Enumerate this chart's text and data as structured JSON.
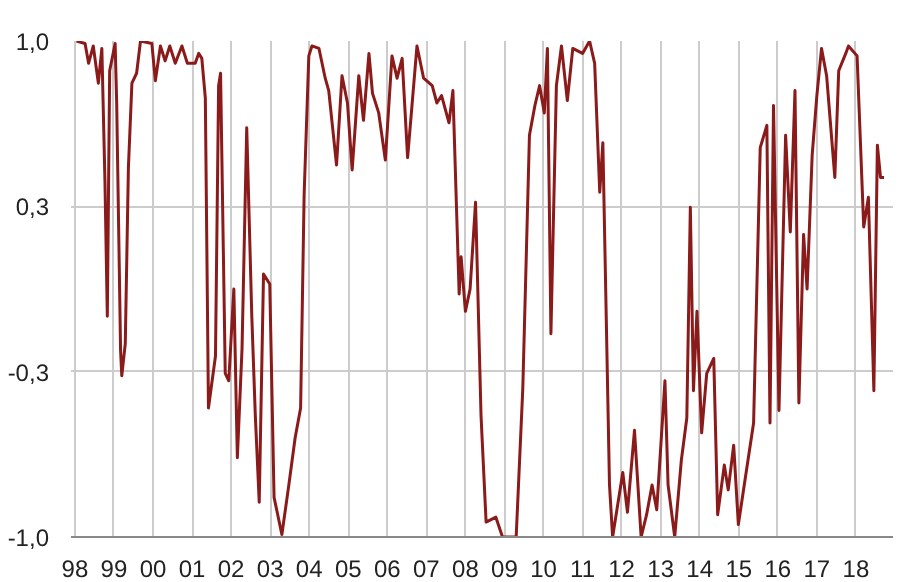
{
  "chart_data": {
    "type": "line",
    "x": [
      1998.04,
      1998.26,
      1998.35,
      1998.47,
      1998.6,
      1998.69,
      1998.77,
      1998.83,
      1998.89,
      1999.03,
      1999.07,
      1999.17,
      1999.2,
      1999.29,
      1999.37,
      1999.46,
      1999.58,
      1999.68,
      1999.97,
      2000.06,
      2000.19,
      2000.31,
      2000.43,
      2000.57,
      2000.74,
      2000.88,
      2001.08,
      2001.17,
      2001.25,
      2001.34,
      2001.42,
      2001.6,
      2001.68,
      2001.73,
      2001.85,
      2001.94,
      2002.07,
      2002.16,
      2002.28,
      2002.4,
      2002.53,
      2002.62,
      2002.72,
      2002.83,
      2002.99,
      2003.1,
      2003.3,
      2003.47,
      2003.64,
      2003.78,
      2003.87,
      2003.99,
      2004.07,
      2004.25,
      2004.41,
      2004.5,
      2004.7,
      2004.84,
      2004.98,
      2005.1,
      2005.27,
      2005.39,
      2005.53,
      2005.62,
      2005.78,
      2005.95,
      2006.12,
      2006.25,
      2006.38,
      2006.52,
      2006.76,
      2006.93,
      2007.15,
      2007.27,
      2007.39,
      2007.58,
      2007.68,
      2007.84,
      2007.89,
      2008.0,
      2008.12,
      2008.26,
      2008.4,
      2008.53,
      2008.78,
      2008.95,
      2009.3,
      2009.47,
      2009.64,
      2009.78,
      2009.9,
      2010.02,
      2010.1,
      2010.19,
      2010.33,
      2010.46,
      2010.61,
      2010.75,
      2011.0,
      2011.18,
      2011.31,
      2011.44,
      2011.52,
      2011.69,
      2011.77,
      2012.03,
      2012.15,
      2012.33,
      2012.5,
      2012.64,
      2012.78,
      2012.9,
      2013.11,
      2013.19,
      2013.36,
      2013.53,
      2013.67,
      2013.76,
      2013.84,
      2013.93,
      2014.05,
      2014.18,
      2014.36,
      2014.46,
      2014.63,
      2014.73,
      2014.87,
      2014.99,
      2015.16,
      2015.38,
      2015.55,
      2015.72,
      2015.8,
      2015.89,
      2016.03,
      2016.2,
      2016.32,
      2016.44,
      2016.54,
      2016.66,
      2016.75,
      2016.88,
      2017.0,
      2017.12,
      2017.25,
      2017.46,
      2017.56,
      2017.74,
      2017.81,
      2018.03,
      2018.2,
      2018.32,
      2018.46,
      2018.55,
      2018.63,
      2018.72
    ],
    "series": [
      {
        "color": "#8b1a1a",
        "values": [
          1.0,
          0.99,
          0.91,
          0.98,
          0.83,
          0.97,
          0.43,
          -0.11,
          0.88,
          0.99,
          0.75,
          -0.25,
          -0.35,
          -0.22,
          0.49,
          0.83,
          0.87,
          1.0,
          0.99,
          0.84,
          0.98,
          0.92,
          0.98,
          0.91,
          0.98,
          0.91,
          0.91,
          0.95,
          0.93,
          0.77,
          -0.48,
          -0.27,
          0.82,
          0.87,
          -0.34,
          -0.37,
          0.0,
          -0.68,
          -0.24,
          0.65,
          -0.11,
          -0.51,
          -0.86,
          0.06,
          0.02,
          -0.84,
          -0.99,
          -0.8,
          -0.6,
          -0.48,
          0.38,
          0.94,
          0.98,
          0.97,
          0.85,
          0.8,
          0.5,
          0.86,
          0.75,
          0.48,
          0.86,
          0.68,
          0.95,
          0.79,
          0.71,
          0.52,
          0.94,
          0.85,
          0.93,
          0.53,
          0.98,
          0.85,
          0.82,
          0.75,
          0.78,
          0.67,
          0.8,
          -0.02,
          0.13,
          -0.09,
          0.0,
          0.35,
          -0.51,
          -0.94,
          -0.92,
          -1.0,
          -1.0,
          -0.4,
          0.62,
          0.74,
          0.82,
          0.71,
          0.97,
          -0.18,
          0.82,
          0.98,
          0.76,
          0.97,
          0.95,
          1.0,
          0.91,
          0.39,
          0.59,
          -0.79,
          -1.0,
          -0.74,
          -0.9,
          -0.57,
          -1.0,
          -0.91,
          -0.79,
          -0.89,
          -0.37,
          -0.79,
          -1.0,
          -0.69,
          -0.52,
          0.33,
          -0.41,
          -0.09,
          -0.58,
          -0.34,
          -0.28,
          -0.91,
          -0.71,
          -0.81,
          -0.63,
          -0.95,
          -0.77,
          -0.54,
          0.57,
          0.66,
          -0.54,
          0.74,
          -0.49,
          0.62,
          0.23,
          0.8,
          -0.46,
          0.22,
          0.0,
          0.54,
          0.78,
          0.97,
          0.86,
          0.45,
          0.88,
          0.95,
          0.98,
          0.94,
          0.25,
          0.37,
          -0.41,
          0.58,
          0.45,
          0.45
        ]
      }
    ],
    "xlim": [
      1997.9,
      2018.95
    ],
    "ylim": [
      -1.0,
      1.0
    ],
    "xticks": [
      {
        "value": 1998,
        "label": "98"
      },
      {
        "value": 1999,
        "label": "99"
      },
      {
        "value": 2000,
        "label": "00"
      },
      {
        "value": 2001,
        "label": "01"
      },
      {
        "value": 2002,
        "label": "02"
      },
      {
        "value": 2003,
        "label": "03"
      },
      {
        "value": 2004,
        "label": "04"
      },
      {
        "value": 2005,
        "label": "05"
      },
      {
        "value": 2006,
        "label": "06"
      },
      {
        "value": 2007,
        "label": "07"
      },
      {
        "value": 2008,
        "label": "08"
      },
      {
        "value": 2009,
        "label": "09"
      },
      {
        "value": 2010,
        "label": "10"
      },
      {
        "value": 2011,
        "label": "11"
      },
      {
        "value": 2012,
        "label": "12"
      },
      {
        "value": 2013,
        "label": "13"
      },
      {
        "value": 2014,
        "label": "14"
      },
      {
        "value": 2015,
        "label": "15"
      },
      {
        "value": 2016,
        "label": "16"
      },
      {
        "value": 2017,
        "label": "17"
      },
      {
        "value": 2018,
        "label": "18"
      }
    ],
    "yticks": [
      {
        "value": -1.0,
        "label": "-1,0"
      },
      {
        "value": -0.333,
        "label": "-0,3"
      },
      {
        "value": 0.333,
        "label": "0,3"
      },
      {
        "value": 1.0,
        "label": "1,0"
      }
    ],
    "grid": true
  }
}
